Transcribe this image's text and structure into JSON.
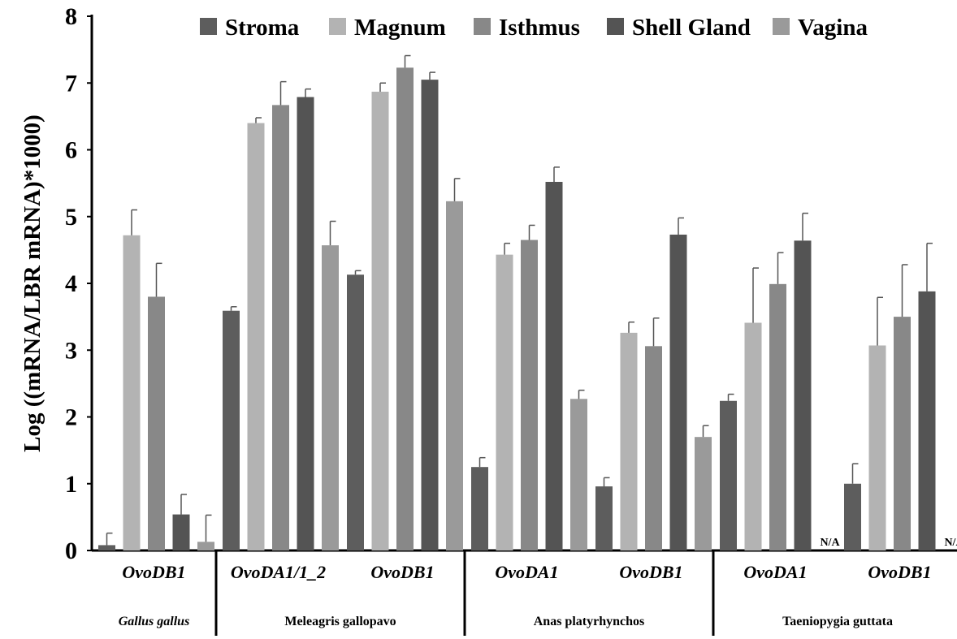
{
  "chart_data": {
    "type": "bar",
    "ylabel": "Log ((mRNA/LBR mRNA)*1000)",
    "ylim": [
      0,
      8
    ],
    "yticks": [
      "0",
      "1",
      "2",
      "3",
      "4",
      "5",
      "6",
      "7",
      "8"
    ],
    "grid": false,
    "legend_position": "top",
    "series": [
      {
        "name": "Stroma",
        "color": "#5d5d5d"
      },
      {
        "name": "Magnum",
        "color": "#b3b3b3"
      },
      {
        "name": "Isthmus",
        "color": "#888888"
      },
      {
        "name": "Shell Gland",
        "color": "#545454"
      },
      {
        "name": "Vagina",
        "color": "#9a9a9a"
      }
    ],
    "groups": [
      {
        "gene": "OvoDB1",
        "values": [
          0.08,
          4.72,
          3.8,
          0.54,
          0.13
        ],
        "errors": [
          0.18,
          0.38,
          0.5,
          0.3,
          0.4
        ],
        "na": [
          false,
          false,
          false,
          false,
          false
        ]
      },
      {
        "gene": "OvoDA1/1_2",
        "values": [
          3.59,
          6.4,
          6.67,
          6.79,
          4.57
        ],
        "errors": [
          0.06,
          0.08,
          0.35,
          0.12,
          0.36
        ],
        "na": [
          false,
          false,
          false,
          false,
          false
        ]
      },
      {
        "gene": "OvoDB1",
        "values": [
          4.13,
          6.87,
          7.23,
          7.05,
          5.23
        ],
        "errors": [
          0.06,
          0.13,
          0.18,
          0.11,
          0.34
        ],
        "na": [
          false,
          false,
          false,
          false,
          false
        ]
      },
      {
        "gene": "OvoDA1",
        "values": [
          1.25,
          4.43,
          4.65,
          5.52,
          2.27
        ],
        "errors": [
          0.14,
          0.17,
          0.22,
          0.22,
          0.13
        ],
        "na": [
          false,
          false,
          false,
          false,
          false
        ]
      },
      {
        "gene": "OvoDB1",
        "values": [
          0.96,
          3.26,
          3.06,
          4.73,
          1.7
        ],
        "errors": [
          0.13,
          0.16,
          0.42,
          0.25,
          0.17
        ],
        "na": [
          false,
          false,
          false,
          false,
          false
        ]
      },
      {
        "gene": "OvoDA1",
        "values": [
          2.24,
          3.41,
          3.99,
          4.64,
          null
        ],
        "errors": [
          0.1,
          0.82,
          0.47,
          0.41,
          null
        ],
        "na": [
          false,
          false,
          false,
          false,
          true
        ]
      },
      {
        "gene": "OvoDB1",
        "values": [
          1.0,
          3.07,
          3.5,
          3.88,
          null
        ],
        "errors": [
          0.3,
          0.72,
          0.78,
          0.72,
          null
        ],
        "na": [
          false,
          false,
          false,
          false,
          true
        ]
      }
    ],
    "species": [
      {
        "name": "Gallus gallus",
        "italic": true,
        "group_indices": [
          0
        ]
      },
      {
        "name": "Meleagris gallopavo",
        "italic": false,
        "group_indices": [
          1,
          2
        ]
      },
      {
        "name": "Anas platyrhynchos",
        "italic": false,
        "group_indices": [
          3,
          4
        ]
      },
      {
        "name": "Taeniopygia guttata",
        "italic": false,
        "group_indices": [
          5,
          6
        ]
      }
    ],
    "na_label": "N/A"
  }
}
